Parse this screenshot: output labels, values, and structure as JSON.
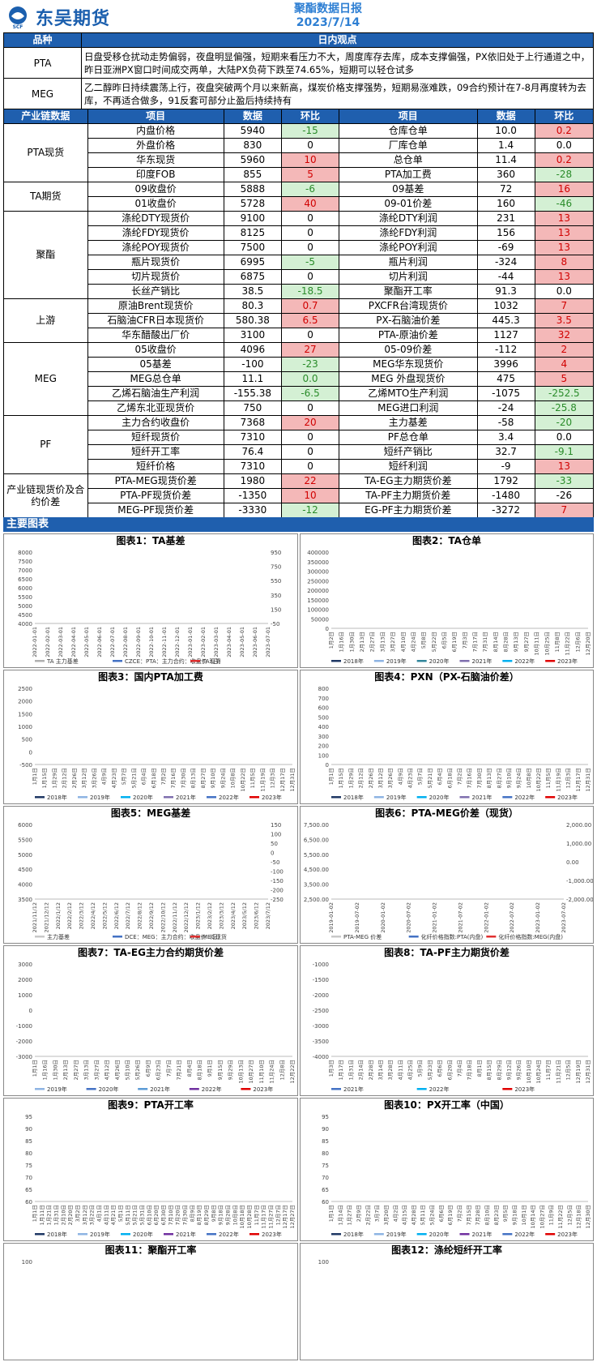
{
  "header": {
    "brand": "东吴期货",
    "title": "聚酯数据日报",
    "date": "2023/7/14"
  },
  "view": {
    "col_product": "品种",
    "col_view": "日内观点",
    "rows": [
      {
        "product": "PTA",
        "text": "日盘受移仓扰动走势偏弱，夜盘明显偏强，短期来看压力不大，周度库存去库，成本支撑偏强，PX依旧处于上行通道之中，昨日亚洲PX窗口时间成交两单，大陆PX负荷下跌至74.65%，短期可以轻仓试多"
      },
      {
        "product": "MEG",
        "text": "乙二醇昨日持续震荡上行，夜盘突破两个月以来新高，煤炭价格支撑强势，短期易涨难跌，09合约预计在7-8月再度转为去库，不再适合做多，91反套可部分止盈后持续持有"
      }
    ]
  },
  "table": {
    "headers": [
      "产业链数据",
      "项目",
      "数据",
      "环比",
      "项目",
      "数据",
      "环比"
    ],
    "groups": [
      {
        "cat": "PTA现货",
        "rows": [
          [
            "内盘价格",
            "5940",
            "-15",
            "g",
            "仓库仓单",
            "10.0",
            "0.2",
            "r"
          ],
          [
            "外盘价格",
            "830",
            "0",
            "",
            "厂库仓单",
            "1.4",
            "0.0",
            ""
          ],
          [
            "华东现货",
            "5960",
            "10",
            "r",
            "总仓单",
            "11.4",
            "0.2",
            "r"
          ],
          [
            "印度FOB",
            "855",
            "5",
            "r",
            "PTA加工费",
            "360",
            "-28",
            "g"
          ]
        ]
      },
      {
        "cat": "TA期货",
        "rows": [
          [
            "09收盘价",
            "5888",
            "-6",
            "g",
            "09基差",
            "72",
            "16",
            "r"
          ],
          [
            "01收盘价",
            "5728",
            "40",
            "r",
            "09-01价差",
            "160",
            "-46",
            "g"
          ]
        ]
      },
      {
        "cat": "聚酯",
        "rows": [
          [
            "涤纶DTY现货价",
            "9100",
            "0",
            "",
            "涤纶DTY利润",
            "231",
            "13",
            "r"
          ],
          [
            "涤纶FDY现货价",
            "8125",
            "0",
            "",
            "涤纶FDY利润",
            "156",
            "13",
            "r"
          ],
          [
            "涤纶POY现货价",
            "7500",
            "0",
            "",
            "涤纶POY利润",
            "-69",
            "13",
            "r"
          ],
          [
            "瓶片现货价",
            "6995",
            "-5",
            "g",
            "瓶片利润",
            "-324",
            "8",
            "r"
          ],
          [
            "切片现货价",
            "6875",
            "0",
            "",
            "切片利润",
            "-44",
            "13",
            "r"
          ],
          [
            "长丝产销比",
            "38.5",
            "-18.5",
            "g",
            "聚酯开工率",
            "91.3",
            "0.0",
            ""
          ]
        ]
      },
      {
        "cat": "上游",
        "rows": [
          [
            "原油Brent现货价",
            "80.3",
            "0.7",
            "r",
            "PXCFR台湾现货价",
            "1032",
            "7",
            "r"
          ],
          [
            "石脑油CFR日本现货价",
            "580.38",
            "6.5",
            "r",
            "PX-石脑油价差",
            "445.3",
            "3.5",
            "r"
          ],
          [
            "华东醋酸出厂价",
            "3100",
            "0",
            "",
            "PTA-原油价差",
            "1127",
            "32",
            "r"
          ]
        ]
      },
      {
        "cat": "MEG",
        "rows": [
          [
            "05收盘价",
            "4096",
            "27",
            "r",
            "05-09价差",
            "-112",
            "2",
            "r"
          ],
          [
            "05基差",
            "-100",
            "-23",
            "g",
            "MEG华东现货价",
            "3996",
            "4",
            "r"
          ],
          [
            "MEG总仓单",
            "11.1",
            "0.0",
            "g",
            "MEG 外盘现货价",
            "475",
            "5",
            "r"
          ],
          [
            "乙烯石脑油生产利润",
            "-155.38",
            "-6.5",
            "g",
            "乙烯MTO生产利润",
            "-1075",
            "-252.5",
            "g"
          ],
          [
            "乙烯东北亚现货价",
            "750",
            "0",
            "",
            "MEG进口利润",
            "-24",
            "-25.8",
            "g"
          ]
        ]
      },
      {
        "cat": "PF",
        "rows": [
          [
            "主力合约收盘价",
            "7368",
            "20",
            "r",
            "主力基差",
            "-58",
            "-20",
            "g"
          ],
          [
            "短纤现货价",
            "7310",
            "0",
            "",
            "PF总仓单",
            "3.4",
            "0.0",
            ""
          ],
          [
            "短纤开工率",
            "76.4",
            "0",
            "",
            "短纤产销比",
            "32.7",
            "-9.1",
            "g"
          ],
          [
            "短纤价格",
            "7310",
            "0",
            "",
            "短纤利润",
            "-9",
            "13",
            "r"
          ]
        ]
      },
      {
        "cat": "产业链现货价及合约价差",
        "rows": [
          [
            "PTA-MEG现货价差",
            "1980",
            "22",
            "r",
            "TA-EG主力期货价差",
            "1792",
            "-33",
            "g"
          ],
          [
            "PTA-PF现货价差",
            "-1350",
            "10",
            "r",
            "TA-PF主力期货价差",
            "-1480",
            "-26",
            ""
          ],
          [
            "MEG-PF现货价差",
            "-3330",
            "-12",
            "g",
            "EG-PF主力期货价差",
            "-3272",
            "7",
            "r"
          ]
        ]
      }
    ]
  },
  "section_title": "主要图表",
  "charts": [
    {
      "title": "图表1：TA基差",
      "yticks": [
        "8000",
        "7500",
        "7000",
        "6500",
        "6000",
        "5500",
        "5000",
        "4500",
        "4000"
      ],
      "y2ticks": [
        "950",
        "750",
        "550",
        "350",
        "150",
        "-50"
      ],
      "xticks": [
        "2022-01-01",
        "2022-02-01",
        "2022-03-01",
        "2022-04-01",
        "2022-05-01",
        "2022-06-01",
        "2022-07-01",
        "2022-08-01",
        "2022-09-01",
        "2022-10-01",
        "2022-11-01",
        "2022-12-01",
        "2023-01-01",
        "2023-02-01",
        "2023-03-01",
        "2023-04-01",
        "2023-05-01",
        "2023-06-01",
        "2023-07-01"
      ],
      "legend": [
        "TA 主力基差",
        "CZCE：PTA：主力合约：收盘价（日）",
        "TA现货"
      ],
      "colors": [
        "#b0b0b0",
        "#4472c4",
        "#e03030"
      ]
    },
    {
      "title": "图表2：TA仓单",
      "yticks": [
        "400000",
        "350000",
        "300000",
        "250000",
        "200000",
        "150000",
        "100000",
        "50000",
        "0"
      ],
      "xticks": [
        "1月2日",
        "1月16日",
        "1月30日",
        "2月13日",
        "2月27日",
        "3月13日",
        "3月27日",
        "4月10日",
        "4月24日",
        "5月8日",
        "5月22日",
        "6月5日",
        "6月19日",
        "7月3日",
        "7月17日",
        "7月31日",
        "8月14日",
        "8月28日",
        "9月13日",
        "9月27日",
        "10月11日",
        "10月25日",
        "11月8日",
        "11月22日",
        "12月6日",
        "12月20日"
      ],
      "legend": [
        "2018年",
        "2019年",
        "2020年",
        "2021年",
        "2022年",
        "2023年"
      ],
      "colors": [
        "#1f3864",
        "#8eb4e3",
        "#31869b",
        "#7f6fae",
        "#00b0f0",
        "#e00000"
      ]
    },
    {
      "title": "图表3：国内PTA加工费",
      "yticks": [
        "2500",
        "2000",
        "1500",
        "1000",
        "500",
        "0",
        "-500"
      ],
      "xticks": [
        "1月1日",
        "1月15日",
        "1月29日",
        "2月12日",
        "2月26日",
        "3月12日",
        "3月26日",
        "4月9日",
        "4月23日",
        "5月7日",
        "5月21日",
        "6月4日",
        "6月18日",
        "7月2日",
        "7月16日",
        "7月30日",
        "8月13日",
        "8月27日",
        "9月10日",
        "9月24日",
        "10月8日",
        "10月22日",
        "11月5日",
        "11月19日",
        "12月3日",
        "12月17日",
        "12月31日"
      ],
      "legend": [
        "2018年",
        "2019年",
        "2020年",
        "2021年",
        "2022年",
        "2023年"
      ],
      "colors": [
        "#1f3864",
        "#8eb4e3",
        "#00b0f0",
        "#7f6fae",
        "#4472c4",
        "#e00000"
      ]
    },
    {
      "title": "图表4：PXN（PX-石脑油价差）",
      "yticks": [
        "800",
        "700",
        "600",
        "500",
        "400",
        "300",
        "200",
        "100",
        "0"
      ],
      "xticks": [
        "1月1日",
        "1月15日",
        "1月29日",
        "2月12日",
        "2月26日",
        "3月12日",
        "3月26日",
        "4月9日",
        "4月23日",
        "5月7日",
        "5月21日",
        "6月4日",
        "6月18日",
        "7月2日",
        "7月16日",
        "7月30日",
        "8月13日",
        "8月27日",
        "9月10日",
        "9月24日",
        "10月8日",
        "10月22日",
        "11月5日",
        "11月19日",
        "12月3日",
        "12月17日",
        "12月31日"
      ],
      "legend": [
        "2018年",
        "2019年",
        "2020年",
        "2021年",
        "2022年",
        "2023年"
      ],
      "colors": [
        "#1f3864",
        "#8eb4e3",
        "#00b0f0",
        "#7f6fae",
        "#4472c4",
        "#e00000"
      ]
    },
    {
      "title": "图表5：MEG基差",
      "yticks": [
        "6000",
        "5500",
        "5000",
        "4500",
        "4000",
        "3500"
      ],
      "y2ticks": [
        "150",
        "100",
        "50",
        "0",
        "-50",
        "-100",
        "-150",
        "-200",
        "-250"
      ],
      "xticks": [
        "2021/11/12",
        "2021/12/12",
        "2022/1/12",
        "2022/2/12",
        "2022/3/12",
        "2022/4/12",
        "2022/5/12",
        "2022/6/12",
        "2022/7/12",
        "2022/8/12",
        "2022/9/12",
        "2022/10/12",
        "2022/11/12",
        "2022/12/12",
        "2023/1/12",
        "2023/2/12",
        "2023/3/12",
        "2023/4/12",
        "2023/5/12",
        "2023/6/12",
        "2023/7/12"
      ],
      "legend": [
        "主力基差",
        "DCE：MEG：主力合约：收盘价（日）",
        "MEG现货"
      ],
      "colors": [
        "#c8c8c8",
        "#4472c4",
        "#e03030"
      ]
    },
    {
      "title": "图表6：PTA-MEG价差（现货）",
      "yticks": [
        "7,500.00",
        "6,500.00",
        "5,500.00",
        "4,500.00",
        "3,500.00",
        "2,500.00"
      ],
      "y2ticks": [
        "2,000.00",
        "1,000.00",
        "0.00",
        "-1,000.00",
        "-2,000.00"
      ],
      "xticks": [
        "2019-01-02",
        "2019-07-02",
        "2020-01-02",
        "2020-07-02",
        "2021-01-02",
        "2021-07-02",
        "2022-01-02",
        "2022-07-02",
        "2023-01-02",
        "2023-07-02"
      ],
      "legend": [
        "PTA-MEG 价差",
        "化纤价格指数:PTA(内盘)",
        "化纤价格指数:MEG(内盘)"
      ],
      "colors": [
        "#c8c8c8",
        "#4472c4",
        "#e03030"
      ]
    },
    {
      "title": "图表7：TA-EG主力合约期货价差",
      "yticks": [
        "3000",
        "2000",
        "1000",
        "0",
        "-1000",
        "-2000",
        "-3000"
      ],
      "xticks": [
        "1月1日",
        "1月16日",
        "1月30日",
        "2月13日",
        "2月27日",
        "3月13日",
        "3月27日",
        "4月12日",
        "4月26日",
        "5月10日",
        "5月26日",
        "6月9日",
        "6月23日",
        "7月7日",
        "7月21日",
        "8月4日",
        "8月18日",
        "9月1日",
        "9月15日",
        "9月29日",
        "10月13日",
        "10月27日",
        "11月10日",
        "11月24日",
        "12月8日",
        "12月22日"
      ],
      "legend": [
        "2019年",
        "2020年",
        "2021年",
        "2022年",
        "2023年"
      ],
      "colors": [
        "#8eb4e3",
        "#4472c4",
        "#5b9bd5",
        "#7030a0",
        "#e00000"
      ]
    },
    {
      "title": "图表8：TA-PF主力期货价差",
      "yticks": [
        "-1000",
        "-1500",
        "-2000",
        "-2500",
        "-3000",
        "-3500",
        "-4000"
      ],
      "xticks": [
        "1月3日",
        "1月17日",
        "1月31日",
        "2月14日",
        "2月28日",
        "3月14日",
        "3月28日",
        "4月11日",
        "4月25日",
        "5月9日",
        "5月23日",
        "6月6日",
        "6月20日",
        "7月4日",
        "7月18日",
        "8月1日",
        "8月15日",
        "8月29日",
        "9月12日",
        "9月26日",
        "10月10日",
        "10月24日",
        "11月7日",
        "11月21日",
        "12月5日",
        "12月19日",
        "12月31日"
      ],
      "legend": [
        "2021年",
        "2022年",
        "2023年"
      ],
      "colors": [
        "#4472c4",
        "#00b0f0",
        "#e00000"
      ]
    },
    {
      "title": "图表9：PTA开工率",
      "yticks": [
        "95",
        "90",
        "85",
        "80",
        "75",
        "70",
        "65",
        "60"
      ],
      "xticks": [
        "1月1日",
        "1月11日",
        "1月21日",
        "1月31日",
        "2月10日",
        "2月20日",
        "3月2日",
        "3月12日",
        "3月22日",
        "4月1日",
        "4月11日",
        "4月21日",
        "5月1日",
        "5月11日",
        "5月21日",
        "5月31日",
        "6月10日",
        "6月20日",
        "6月30日",
        "7月10日",
        "7月20日",
        "7月30日",
        "8月9日",
        "8月19日",
        "8月29日",
        "9月8日",
        "9月18日",
        "9月28日",
        "10月8日",
        "10月18日",
        "10月28日",
        "11月7日",
        "11月17日",
        "11月27日",
        "12月7日",
        "12月17日",
        "12月27日"
      ],
      "legend": [
        "2018年",
        "2019年",
        "2020年",
        "2021年",
        "2022年",
        "2023年"
      ],
      "colors": [
        "#1f3864",
        "#8eb4e3",
        "#00b0f0",
        "#7030a0",
        "#4472c4",
        "#e00000"
      ]
    },
    {
      "title": "图表10：PX开工率（中国）",
      "yticks": [
        "95",
        "90",
        "85",
        "80",
        "75",
        "70",
        "65",
        "60"
      ],
      "xticks": [
        "1月1日",
        "1月14日",
        "1月27日",
        "2月9日",
        "2月22日",
        "3月7日",
        "3月20日",
        "4月2日",
        "4月15日",
        "4月28日",
        "5月11日",
        "5月24日",
        "6月6日",
        "6月19日",
        "7月2日",
        "7月15日",
        "7月28日",
        "8月10日",
        "8月23日",
        "9月5日",
        "9月18日",
        "10月1日",
        "10月14日",
        "10月27日",
        "11月9日",
        "11月22日",
        "12月5日",
        "12月18日",
        "12月30日"
      ],
      "legend": [
        "2018年",
        "2019年",
        "2020年",
        "2021年",
        "2022年",
        "2023年"
      ],
      "colors": [
        "#1f3864",
        "#8eb4e3",
        "#00b0f0",
        "#7030a0",
        "#4472c4",
        "#e00000"
      ]
    },
    {
      "title": "图表11：聚酯开工率",
      "yticks": [
        "100"
      ],
      "xticks": [],
      "legend": [],
      "colors": []
    },
    {
      "title": "图表12：涤纶短纤开工率",
      "yticks": [
        "100"
      ],
      "xticks": [],
      "legend": [],
      "colors": []
    }
  ]
}
